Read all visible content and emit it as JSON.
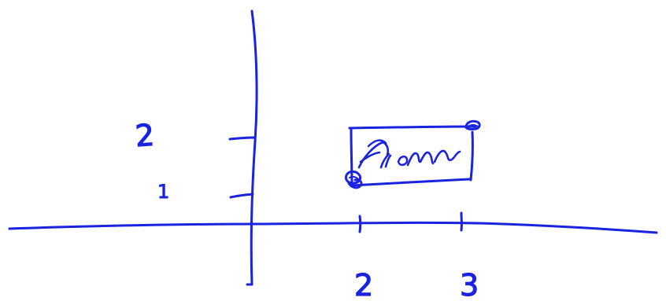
{
  "colors": {
    "ink": "#1a23e0",
    "background": "#ffffff"
  },
  "axes": {
    "x_tick_labels": [
      "2",
      "3"
    ],
    "y_tick_labels": [
      "1",
      "2"
    ]
  },
  "box": {
    "handwritten_label": "Atom",
    "corner_handles": [
      "bottom-left",
      "top-right"
    ]
  }
}
